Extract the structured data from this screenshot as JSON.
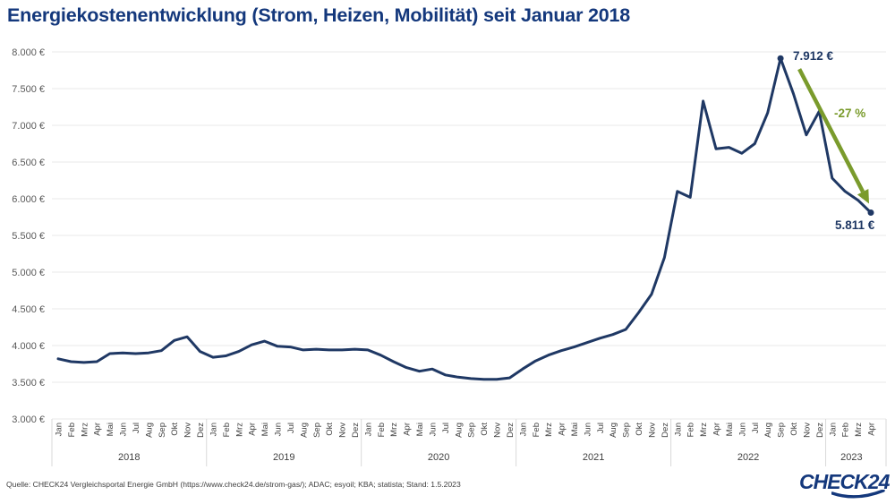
{
  "header": {
    "title": "Energiekostenentwicklung (Strom, Heizen, Mobilität) seit Januar 2018"
  },
  "footer": {
    "source": "Quelle: CHECK24 Vergleichsportal Energie GmbH (https://www.check24.de/strom-gas/); ADAC; esyoil; KBA; statista; Stand: 1.5.2023",
    "logo_text": "CHECK24"
  },
  "colors": {
    "navy": "#14387c",
    "line": "#1f3864",
    "green": "#7a9b2c",
    "grid": "#e8e8e8",
    "separator": "#d9d9d9",
    "axis_text": "#404040",
    "tick_text": "#595959"
  },
  "chart_data": {
    "type": "line",
    "title": "Energiekostenentwicklung (Strom, Heizen, Mobilität) seit Januar 2018",
    "unit": "EUR pro Jahr",
    "ylim": [
      3000,
      8000
    ],
    "grid": true,
    "legend": "none",
    "y_ticks": [
      {
        "value": 8000,
        "label": "8.000 €"
      },
      {
        "value": 7500,
        "label": "7.500 €"
      },
      {
        "value": 7000,
        "label": "7.000 €"
      },
      {
        "value": 6500,
        "label": "6.500 €"
      },
      {
        "value": 6000,
        "label": "6.000 €"
      },
      {
        "value": 5500,
        "label": "5.500 €"
      },
      {
        "value": 5000,
        "label": "5.000 €"
      },
      {
        "value": 4500,
        "label": "4.500 €"
      },
      {
        "value": 4000,
        "label": "4.000 €"
      },
      {
        "value": 3500,
        "label": "3.500 €"
      },
      {
        "value": 3000,
        "label": "3.000 €"
      }
    ],
    "years": [
      {
        "year": "2018",
        "months": [
          "Jan",
          "Feb",
          "Mrz",
          "Apr",
          "Mai",
          "Jun",
          "Jul",
          "Aug",
          "Sep",
          "Okt",
          "Nov",
          "Dez"
        ],
        "values": [
          3820,
          3780,
          3770,
          3780,
          3890,
          3900,
          3890,
          3900,
          3930,
          4070,
          4120,
          3920
        ]
      },
      {
        "year": "2019",
        "months": [
          "Jan",
          "Feb",
          "Mrz",
          "Apr",
          "Mai",
          "Jun",
          "Jul",
          "Aug",
          "Sep",
          "Okt",
          "Nov",
          "Dez"
        ],
        "values": [
          3840,
          3860,
          3920,
          4010,
          4060,
          3990,
          3980,
          3940,
          3950,
          3940,
          3940,
          3950
        ]
      },
      {
        "year": "2020",
        "months": [
          "Jan",
          "Feb",
          "Mrz",
          "Apr",
          "Mai",
          "Jun",
          "Jul",
          "Aug",
          "Sep",
          "Okt",
          "Nov",
          "Dez"
        ],
        "values": [
          3940,
          3870,
          3780,
          3700,
          3650,
          3680,
          3600,
          3570,
          3550,
          3540,
          3540,
          3560
        ]
      },
      {
        "year": "2021",
        "months": [
          "Jan",
          "Feb",
          "Mrz",
          "Apr",
          "Mai",
          "Jun",
          "Jul",
          "Aug",
          "Sep",
          "Okt",
          "Nov",
          "Dez"
        ],
        "values": [
          3680,
          3790,
          3870,
          3930,
          3980,
          4040,
          4100,
          4150,
          4220,
          4450,
          4700,
          5200
        ]
      },
      {
        "year": "2022",
        "months": [
          "Jan",
          "Feb",
          "Mrz",
          "Apr",
          "Mai",
          "Jun",
          "Jul",
          "Aug",
          "Sep",
          "Okt",
          "Nov",
          "Dez"
        ],
        "values": [
          6100,
          6020,
          7330,
          6680,
          6700,
          6620,
          6750,
          7170,
          7912,
          7430,
          6870,
          7190
        ]
      },
      {
        "year": "2023",
        "months": [
          "Jan",
          "Feb",
          "Mrz",
          "Apr"
        ],
        "values": [
          6280,
          6100,
          5980,
          5811
        ]
      }
    ],
    "annotations": {
      "peak": {
        "label": "7.912 €",
        "month": "Sep 2022",
        "value": 7912,
        "index": 56
      },
      "end": {
        "label": "5.811 €",
        "month": "Apr 2023",
        "value": 5811,
        "index": 63
      },
      "change": {
        "label": "-27 %"
      }
    }
  }
}
